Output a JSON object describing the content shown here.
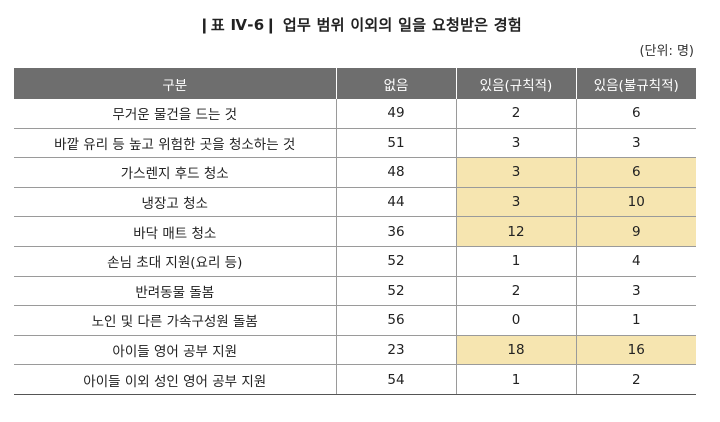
{
  "title": "❙표 Ⅳ-6❙ 업무 범위 이외의 일을 요청받은 경험",
  "unit": "(단위: 명)",
  "table": {
    "headers": [
      "구분",
      "없음",
      "있음(규칙적)",
      "있음(불규칙적)"
    ],
    "rows": [
      [
        "무거운 물건을 드는 것",
        "49",
        "2",
        "6"
      ],
      [
        "바깥 유리 등 높고 위험한 곳을 청소하는 것",
        "51",
        "3",
        "3"
      ],
      [
        "가스렌지 후드 청소",
        "48",
        "3",
        "6"
      ],
      [
        "냉장고 청소",
        "44",
        "3",
        "10"
      ],
      [
        "바닥 매트 청소",
        "36",
        "12",
        "9"
      ],
      [
        "손님 초대 지원(요리 등)",
        "52",
        "1",
        "4"
      ],
      [
        "반려동물 돌봄",
        "52",
        "2",
        "3"
      ],
      [
        "노인 및 다른 가속구성원 돌봄",
        "56",
        "0",
        "1"
      ],
      [
        "아이들 영어 공부 지원",
        "23",
        "18",
        "16"
      ],
      [
        "아이들 이외 성인 영어 공부 지원",
        "54",
        "1",
        "2"
      ]
    ],
    "highlight_color": "#f6e5b0",
    "header_color": "#6e6e6e"
  }
}
